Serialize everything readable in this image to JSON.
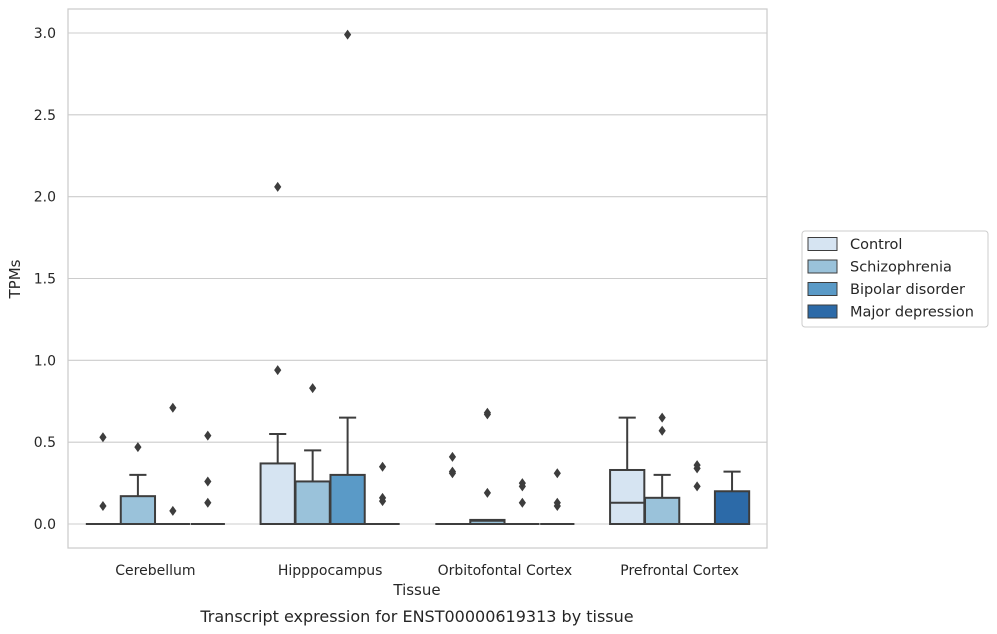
{
  "chart_data": {
    "type": "boxplot",
    "xlabel": "Tissue",
    "ylabel": "TPMs",
    "caption": "Transcript expression for ENST00000619313 by tissue",
    "ylim": [
      -0.15,
      3.15
    ],
    "yticks": [
      0.0,
      0.5,
      1.0,
      1.5,
      2.0,
      2.5,
      3.0
    ],
    "ytick_labels": [
      "0.0",
      "0.5",
      "1.0",
      "1.5",
      "2.0",
      "2.5",
      "3.0"
    ],
    "grid": true,
    "legend_position": "right",
    "categories": [
      "Cerebellum",
      "Hipppocampus",
      "Orbitofontal Cortex",
      "Prefrontal Cortex"
    ],
    "series": [
      {
        "name": "Control",
        "color": "#d6e4f2",
        "boxes": [
          {
            "q1": 0,
            "median": 0,
            "q3": 0,
            "whislo": 0,
            "whishi": 0,
            "fliers": [
              0.53,
              0.11
            ]
          },
          {
            "q1": 0,
            "median": 0,
            "q3": 0.37,
            "whislo": 0,
            "whishi": 0.55,
            "fliers": [
              2.06,
              0.94
            ]
          },
          {
            "q1": 0,
            "median": 0,
            "q3": 0,
            "whislo": 0,
            "whishi": 0,
            "fliers": [
              0.41,
              0.32,
              0.31
            ]
          },
          {
            "q1": 0,
            "median": 0.13,
            "q3": 0.33,
            "whislo": 0,
            "whishi": 0.65,
            "fliers": []
          }
        ]
      },
      {
        "name": "Schizophrenia",
        "color": "#9ac2da",
        "boxes": [
          {
            "q1": 0,
            "median": 0,
            "q3": 0.17,
            "whislo": 0,
            "whishi": 0.3,
            "fliers": [
              0.47
            ]
          },
          {
            "q1": 0,
            "median": 0,
            "q3": 0.26,
            "whislo": 0,
            "whishi": 0.45,
            "fliers": [
              0.83
            ]
          },
          {
            "q1": 0,
            "median": 0.02,
            "q3": 0.025,
            "whislo": 0,
            "whishi": 0.025,
            "fliers": [
              0.68,
              0.67,
              0.19
            ]
          },
          {
            "q1": 0,
            "median": 0,
            "q3": 0.16,
            "whislo": 0,
            "whishi": 0.3,
            "fliers": [
              0.65,
              0.57
            ]
          }
        ]
      },
      {
        "name": "Bipolar disorder",
        "color": "#5a9ac7",
        "boxes": [
          {
            "q1": 0,
            "median": 0,
            "q3": 0,
            "whislo": 0,
            "whishi": 0,
            "fliers": [
              0.71,
              0.08
            ]
          },
          {
            "q1": 0,
            "median": 0,
            "q3": 0.3,
            "whislo": 0,
            "whishi": 0.65,
            "fliers": [
              2.99
            ]
          },
          {
            "q1": 0,
            "median": 0,
            "q3": 0,
            "whislo": 0,
            "whishi": 0,
            "fliers": [
              0.25,
              0.23,
              0.13
            ]
          },
          {
            "q1": 0,
            "median": 0,
            "q3": 0,
            "whislo": 0,
            "whishi": 0,
            "fliers": [
              0.36,
              0.34,
              0.23
            ]
          }
        ]
      },
      {
        "name": "Major depression",
        "color": "#2c6aa8",
        "boxes": [
          {
            "q1": 0,
            "median": 0,
            "q3": 0,
            "whislo": 0,
            "whishi": 0,
            "fliers": [
              0.54,
              0.26,
              0.13
            ]
          },
          {
            "q1": 0,
            "median": 0,
            "q3": 0,
            "whislo": 0,
            "whishi": 0,
            "fliers": [
              0.35,
              0.16,
              0.14
            ]
          },
          {
            "q1": 0,
            "median": 0,
            "q3": 0,
            "whislo": 0,
            "whishi": 0,
            "fliers": [
              0.31,
              0.13,
              0.11
            ]
          },
          {
            "q1": 0,
            "median": 0,
            "q3": 0.2,
            "whislo": 0,
            "whishi": 0.32,
            "fliers": []
          }
        ]
      }
    ]
  }
}
